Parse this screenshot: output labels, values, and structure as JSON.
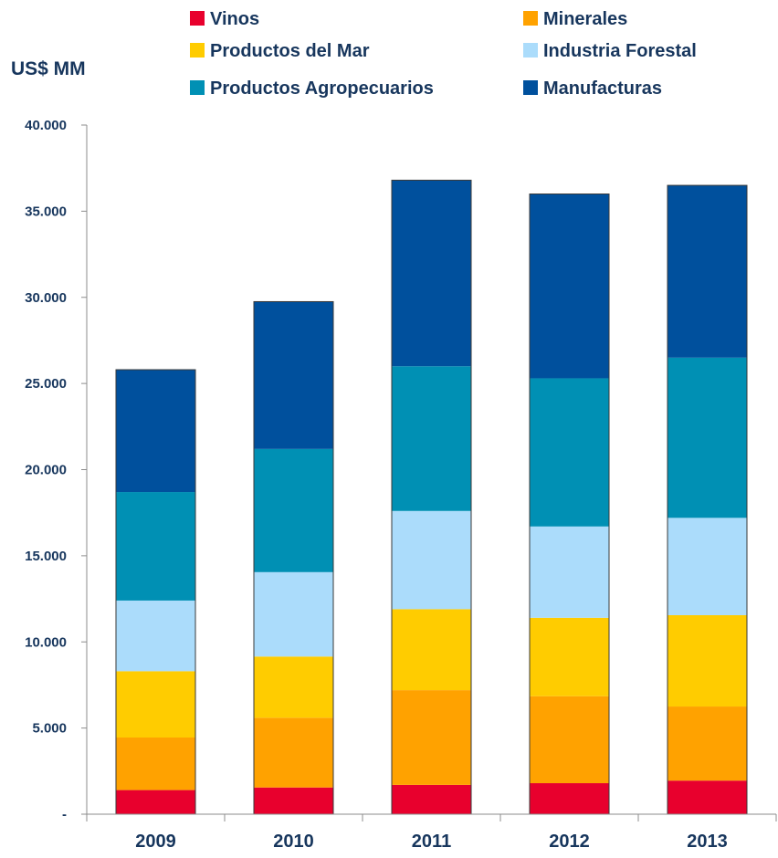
{
  "chart_data": {
    "type": "bar",
    "stacked": true,
    "title": "",
    "xlabel": "",
    "ylabel": "US$ MM",
    "ylim": [
      0,
      40000
    ],
    "yticks": [
      {
        "value": 0,
        "label": "-"
      },
      {
        "value": 5000,
        "label": "5.000"
      },
      {
        "value": 10000,
        "label": "10.000"
      },
      {
        "value": 15000,
        "label": "15.000"
      },
      {
        "value": 20000,
        "label": "20.000"
      },
      {
        "value": 25000,
        "label": "25.000"
      },
      {
        "value": 30000,
        "label": "30.000"
      },
      {
        "value": 35000,
        "label": "35.000"
      },
      {
        "value": 40000,
        "label": "40.000"
      }
    ],
    "grid": false,
    "legend_position": "top",
    "categories": [
      "2009",
      "2010",
      "2011",
      "2012",
      "2013"
    ],
    "series": [
      {
        "name": "Vinos",
        "color": "#e8002d",
        "values": [
          1400,
          1550,
          1700,
          1800,
          1950
        ]
      },
      {
        "name": "Minerales",
        "color": "#ffa200",
        "values": [
          3050,
          4050,
          5500,
          5050,
          4300
        ]
      },
      {
        "name": "Productos del Mar",
        "color": "#ffcc00",
        "values": [
          3850,
          3550,
          4700,
          4550,
          5300
        ]
      },
      {
        "name": "Industria Forestal",
        "color": "#abdcfb",
        "values": [
          4100,
          4900,
          5700,
          5300,
          5650
        ]
      },
      {
        "name": "Productos Agropecuarios",
        "color": "#0090b4",
        "values": [
          6300,
          7150,
          8400,
          8600,
          9300
        ]
      },
      {
        "name": "Manufacturas",
        "color": "#00509d",
        "values": [
          7100,
          8550,
          10800,
          10700,
          10000
        ]
      }
    ]
  }
}
